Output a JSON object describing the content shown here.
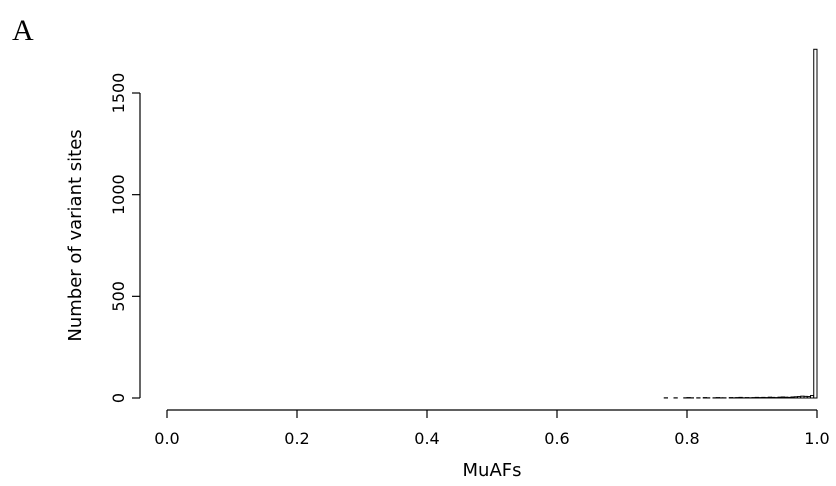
{
  "panel_label": "A",
  "chart_data": {
    "type": "bar",
    "title": "",
    "xlabel": "MuAFs",
    "ylabel": "Number of variant sites",
    "xlim": [
      0.0,
      1.0
    ],
    "ylim": [
      0,
      1700
    ],
    "xticks": [
      0.0,
      0.2,
      0.4,
      0.6,
      0.8,
      1.0
    ],
    "xtick_labels": [
      "0.0",
      "0.2",
      "0.4",
      "0.6",
      "0.8",
      "1.0"
    ],
    "yticks": [
      0,
      500,
      1000,
      1500
    ],
    "ytick_labels": [
      "0",
      "500",
      "1000",
      "1500"
    ],
    "bin_width": 0.005,
    "bins_start": [
      0.765,
      0.77,
      0.775,
      0.78,
      0.785,
      0.79,
      0.795,
      0.8,
      0.805,
      0.81,
      0.815,
      0.82,
      0.825,
      0.83,
      0.835,
      0.84,
      0.845,
      0.85,
      0.855,
      0.86,
      0.865,
      0.87,
      0.875,
      0.88,
      0.885,
      0.89,
      0.895,
      0.9,
      0.905,
      0.91,
      0.915,
      0.92,
      0.925,
      0.93,
      0.935,
      0.94,
      0.945,
      0.95,
      0.955,
      0.96,
      0.965,
      0.97,
      0.975,
      0.98,
      0.985,
      0.99,
      0.995
    ],
    "values": [
      1,
      0,
      0,
      1,
      0,
      0,
      1,
      2,
      1,
      0,
      1,
      0,
      2,
      1,
      0,
      1,
      2,
      1,
      1,
      0,
      2,
      1,
      2,
      3,
      1,
      2,
      1,
      2,
      3,
      2,
      3,
      2,
      4,
      3,
      2,
      4,
      5,
      4,
      3,
      5,
      6,
      7,
      9,
      8,
      7,
      12,
      1715
    ],
    "grid": false,
    "legend": "none"
  }
}
